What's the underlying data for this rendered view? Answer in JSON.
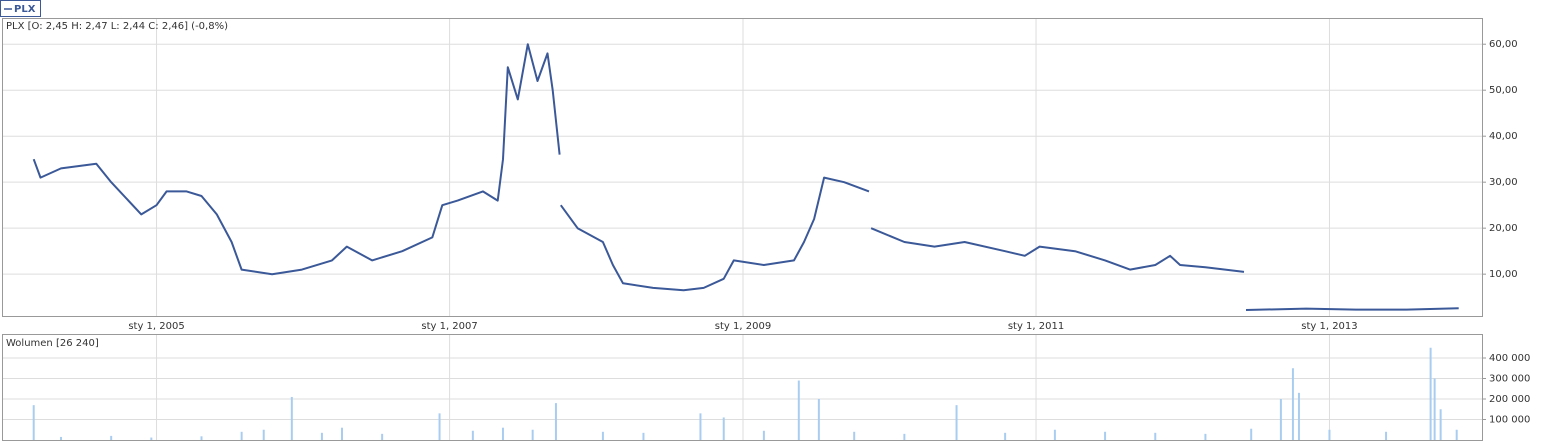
{
  "chart_data": [
    {
      "type": "line",
      "title": "PLX [O: 2,45  H: 2,47  L: 2,44  C: 2,46] (-0,8%)",
      "x": [
        "2004-03-01",
        "2004-03-18",
        "2004-05-08",
        "2004-08-04",
        "2004-09-10",
        "2004-11-24",
        "2005-01-01",
        "2005-01-26",
        "2005-03-17",
        "2005-04-23",
        "2005-05-31",
        "2005-07-07",
        "2005-08-01",
        "2005-10-16",
        "2005-12-29",
        "2006-03-14",
        "2006-04-20",
        "2006-06-22",
        "2006-09-05",
        "2006-11-19",
        "2006-12-14",
        "2007-01-21",
        "2007-03-25",
        "2007-05-01",
        "2007-05-14",
        "2007-05-26",
        "2007-06-20",
        "2007-07-15",
        "2007-08-08",
        "2007-09-02",
        "2007-09-15",
        "2007-10-02",
        "2007-10-03",
        "2007-10-05",
        "2007-11-16",
        "2008-01-18",
        "2008-02-12",
        "2008-03-08",
        "2008-05-22",
        "2008-08-06",
        "2008-09-25",
        "2008-11-14",
        "2008-12-09",
        "2009-02-22",
        "2009-05-08",
        "2009-06-02",
        "2009-06-27",
        "2009-07-22",
        "2009-09-10",
        "2009-11-11",
        "2009-11-13",
        "2009-11-16",
        "2010-02-07",
        "2010-04-23",
        "2010-07-07",
        "2010-10-16",
        "2010-12-04",
        "2011-01-10",
        "2011-04-08",
        "2011-06-22",
        "2011-08-23",
        "2011-10-25",
        "2011-12-01",
        "2011-12-26",
        "2012-02-27",
        "2012-06-02",
        "2012-06-04",
        "2012-06-07",
        "2012-11-04",
        "2013-03-08",
        "2013-07-12",
        "2013-11-19"
      ],
      "series": [
        {
          "name": "PLX",
          "color": "#3b5998",
          "values": [
            35,
            31,
            33,
            34,
            30,
            23,
            25,
            28,
            28,
            27,
            23,
            17,
            11,
            10,
            11,
            13,
            16,
            13,
            15,
            18,
            25,
            26,
            28,
            26,
            35,
            55,
            48,
            60,
            52,
            58,
            50,
            36,
            null,
            25,
            20,
            17,
            12,
            8,
            7,
            6.5,
            7,
            9,
            13,
            12,
            13,
            17,
            22,
            31,
            30,
            28,
            null,
            20,
            17,
            16,
            17,
            15,
            14,
            16,
            15,
            13,
            11,
            12,
            14,
            12,
            11.5,
            10.5,
            null,
            2.2,
            2.5,
            2.3,
            2.3,
            2.6
          ]
        }
      ],
      "xlim": [
        "2003-12-13",
        "2014-01-16"
      ],
      "xticks": [
        {
          "value": "2005-01-01",
          "label": "sty 1, 2005"
        },
        {
          "value": "2007-01-01",
          "label": "sty 1, 2007"
        },
        {
          "value": "2009-01-01",
          "label": "sty 1, 2009"
        },
        {
          "value": "2011-01-01",
          "label": "sty 1, 2011"
        },
        {
          "value": "2013-01-01",
          "label": "sty 1, 2013"
        }
      ],
      "ylim": [
        0.9,
        65.7
      ],
      "yticks": [
        {
          "value": 10,
          "label": "10,00"
        },
        {
          "value": 20,
          "label": "20,00"
        },
        {
          "value": 30,
          "label": "30,00"
        },
        {
          "value": 40,
          "label": "40,00"
        },
        {
          "value": 50,
          "label": "50,00"
        },
        {
          "value": 60,
          "label": "60,00"
        }
      ],
      "grid": true
    },
    {
      "type": "bar",
      "title": "Wolumen [26 240]",
      "x": [
        "2004-03-01",
        "2004-05-08",
        "2004-09-10",
        "2004-12-19",
        "2005-04-23",
        "2005-08-01",
        "2005-09-25",
        "2005-12-04",
        "2006-02-17",
        "2006-04-08",
        "2006-07-17",
        "2006-12-07",
        "2007-02-28",
        "2007-05-14",
        "2007-07-27",
        "2007-09-23",
        "2008-01-18",
        "2008-04-28",
        "2008-09-17",
        "2008-11-14",
        "2009-02-22",
        "2009-05-20",
        "2009-07-09",
        "2009-10-05",
        "2010-02-07",
        "2010-06-17",
        "2010-10-16",
        "2011-02-17",
        "2011-06-22",
        "2011-10-25",
        "2012-02-27",
        "2012-06-20",
        "2012-09-02",
        "2012-10-02",
        "2012-10-17",
        "2013-01-01",
        "2013-05-22",
        "2013-09-10",
        "2013-09-20",
        "2013-10-05",
        "2013-11-14"
      ],
      "values": [
        170000,
        15000,
        20000,
        12000,
        18000,
        40000,
        50000,
        210000,
        35000,
        60000,
        30000,
        130000,
        45000,
        60000,
        50000,
        180000,
        40000,
        35000,
        130000,
        110000,
        45000,
        290000,
        200000,
        40000,
        30000,
        170000,
        35000,
        50000,
        40000,
        35000,
        30000,
        55000,
        200000,
        350000,
        230000,
        50000,
        40000,
        450000,
        300000,
        150000,
        50000
      ],
      "color": "#a9cdf0",
      "ylim": [
        0,
        517000
      ],
      "yticks": [
        {
          "value": 100000,
          "label": "100 000"
        },
        {
          "value": 200000,
          "label": "200 000"
        },
        {
          "value": 300000,
          "label": "300 000"
        },
        {
          "value": 400000,
          "label": "400 000"
        }
      ],
      "grid": true
    }
  ]
}
